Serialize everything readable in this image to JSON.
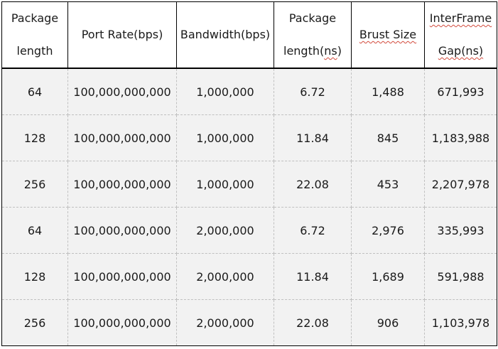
{
  "table": {
    "headers": [
      {
        "lines": [
          "Package",
          "length"
        ],
        "squiggle": [
          false,
          false
        ]
      },
      {
        "lines": [
          "Port Rate(bps)"
        ],
        "squiggle": [
          false
        ]
      },
      {
        "lines": [
          "Bandwidth(bps)"
        ],
        "squiggle": [
          false
        ]
      },
      {
        "lines": [
          "Package",
          "length(ns)"
        ],
        "squiggle": [
          false,
          true
        ]
      },
      {
        "lines": [
          "Brust Size"
        ],
        "squiggle": [
          true
        ]
      },
      {
        "lines": [
          "InterFrame",
          "Gap(ns)"
        ],
        "squiggle": [
          true,
          true
        ]
      }
    ],
    "rows": [
      [
        "64",
        "100,000,000,000",
        "1,000,000",
        "6.72",
        "1,488",
        "671,993"
      ],
      [
        "128",
        "100,000,000,000",
        "1,000,000",
        "11.84",
        "845",
        "1,183,988"
      ],
      [
        "256",
        "100,000,000,000",
        "1,000,000",
        "22.08",
        "453",
        "2,207,978"
      ],
      [
        "64",
        "100,000,000,000",
        "2,000,000",
        "6.72",
        "2,976",
        "335,993"
      ],
      [
        "128",
        "100,000,000,000",
        "2,000,000",
        "11.84",
        "1,689",
        "591,988"
      ],
      [
        "256",
        "100,000,000,000",
        "2,000,000",
        "22.08",
        "906",
        "1,103,978"
      ]
    ]
  },
  "colors": {
    "header_background": "#ffffff",
    "row_background": "#f2f2f2",
    "border": "#000000",
    "inner_border": "#c0c0c0",
    "spellcheck_underline": "#d24a3c"
  }
}
